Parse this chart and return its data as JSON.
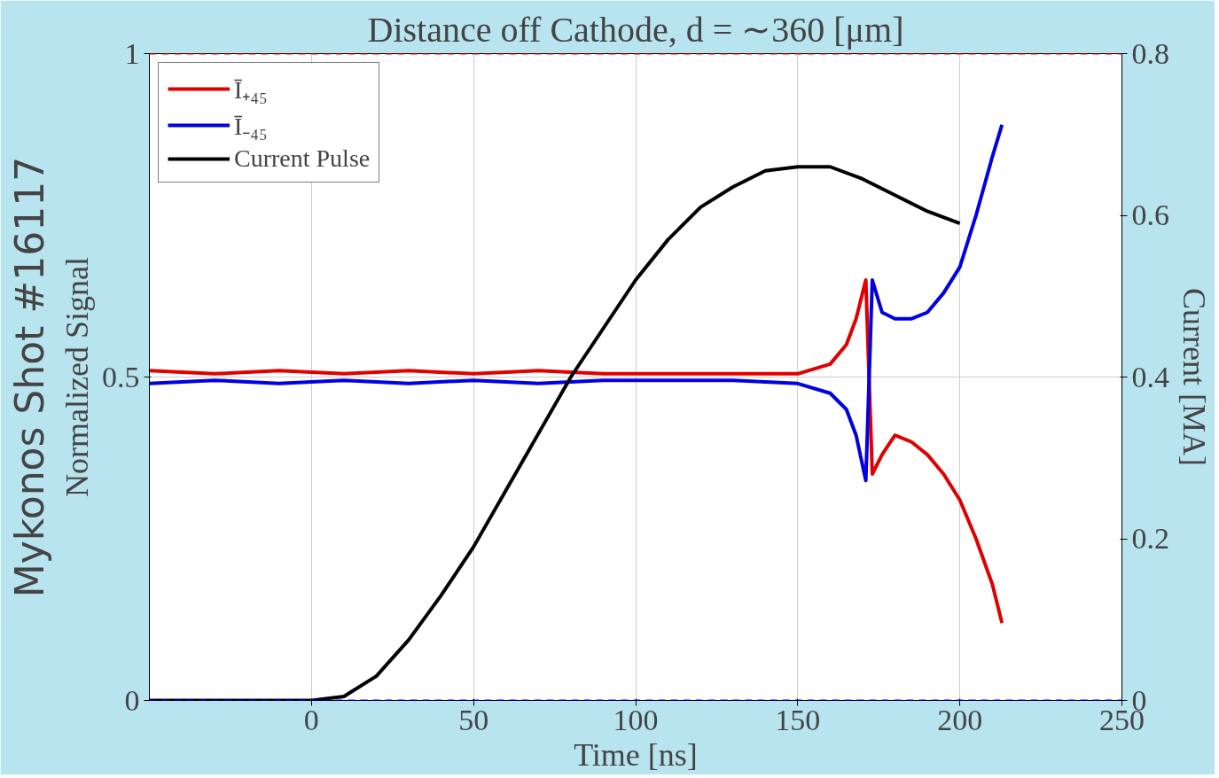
{
  "chart_data": {
    "type": "line",
    "title": "Distance off Cathode, d = ∼360 [μm]",
    "xlabel": "Time [ns]",
    "ylabel": "Normalized Signal",
    "y2label": "Current [MA]",
    "annotations": [
      "Mykonos Shot #16117"
    ],
    "xlim": [
      -50,
      250
    ],
    "xticks": [
      0,
      50,
      100,
      150,
      200,
      250
    ],
    "ylim": [
      0,
      1
    ],
    "yticks": [
      0,
      0.5,
      1
    ],
    "y2lim": [
      0,
      0.8
    ],
    "y2ticks": [
      0,
      0.2,
      0.4,
      0.6,
      0.8
    ],
    "grid": true,
    "legend": "top left",
    "line_style": "solid",
    "ref_lines": [
      {
        "axis": "y",
        "value": 1,
        "color": "#ff0000",
        "line_style": "dashed"
      },
      {
        "axis": "y",
        "value": 0,
        "color": "#0000ff",
        "line_style": "dashed"
      }
    ],
    "series": [
      {
        "name": "Ī₊₄₅",
        "color": "#e00000",
        "x": [
          -50,
          -30,
          -10,
          10,
          30,
          50,
          70,
          90,
          110,
          130,
          150,
          160,
          165,
          168,
          171,
          173,
          176,
          180,
          185,
          190,
          195,
          200,
          205,
          210,
          213
        ],
        "values": [
          0.51,
          0.505,
          0.51,
          0.505,
          0.51,
          0.505,
          0.51,
          0.505,
          0.505,
          0.505,
          0.505,
          0.52,
          0.55,
          0.59,
          0.65,
          0.35,
          0.38,
          0.41,
          0.4,
          0.38,
          0.35,
          0.31,
          0.25,
          0.18,
          0.12
        ]
      },
      {
        "name": "Ī₋₄₅",
        "color": "#0000e0",
        "x": [
          -50,
          -30,
          -10,
          10,
          30,
          50,
          70,
          90,
          110,
          130,
          150,
          160,
          165,
          168,
          171,
          173,
          176,
          180,
          185,
          190,
          195,
          200,
          205,
          210,
          213
        ],
        "values": [
          0.49,
          0.495,
          0.49,
          0.495,
          0.49,
          0.495,
          0.49,
          0.495,
          0.495,
          0.495,
          0.49,
          0.475,
          0.45,
          0.41,
          0.34,
          0.65,
          0.6,
          0.59,
          0.59,
          0.6,
          0.63,
          0.67,
          0.75,
          0.84,
          0.89
        ]
      },
      {
        "name": "Current Pulse",
        "color": "#000000",
        "axis": "y2",
        "x": [
          -50,
          -20,
          0,
          10,
          20,
          30,
          40,
          50,
          60,
          70,
          80,
          90,
          100,
          110,
          120,
          130,
          140,
          150,
          160,
          170,
          180,
          190,
          200
        ],
        "values": [
          0,
          0,
          0,
          0.005,
          0.03,
          0.075,
          0.13,
          0.19,
          0.26,
          0.33,
          0.4,
          0.46,
          0.52,
          0.57,
          0.61,
          0.635,
          0.655,
          0.66,
          0.66,
          0.645,
          0.625,
          0.605,
          0.59
        ]
      }
    ]
  }
}
